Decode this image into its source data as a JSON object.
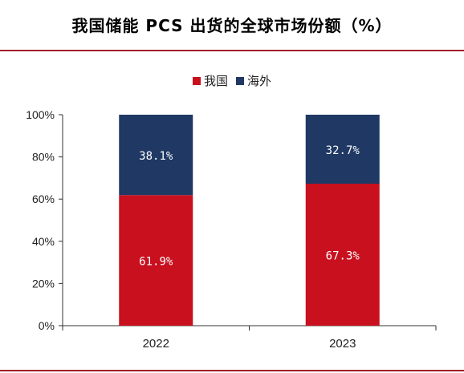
{
  "title": "我国储能 PCS 出货的全球市场份额（%）",
  "colors": {
    "accent_rule": "#a31a2b",
    "series_domestic": "#c8101e",
    "series_overseas": "#1f3864",
    "axis": "#333333",
    "label_text": "#ffffff"
  },
  "chart_data": {
    "type": "bar",
    "stacked": true,
    "categories": [
      "2022",
      "2023"
    ],
    "series": [
      {
        "name": "我国",
        "values": [
          61.9,
          67.3
        ],
        "labels": [
          "61.9%",
          "67.3%"
        ]
      },
      {
        "name": "海外",
        "values": [
          38.1,
          32.7
        ],
        "labels": [
          "38.1%",
          "32.7%"
        ]
      }
    ],
    "ylim": [
      0,
      100
    ],
    "yticks": [
      "0%",
      "20%",
      "40%",
      "60%",
      "80%",
      "100%"
    ],
    "ytick_values": [
      0,
      20,
      40,
      60,
      80,
      100
    ],
    "xlabel": "",
    "ylabel": "",
    "legend_position": "top-center",
    "grid": false
  }
}
